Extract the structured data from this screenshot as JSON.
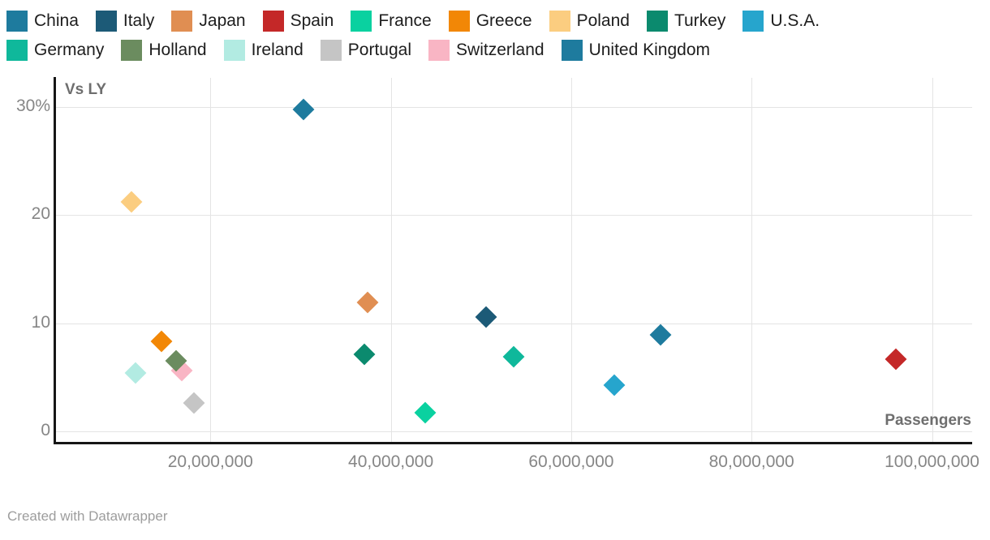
{
  "legend": {
    "rows": [
      [
        {
          "label": "China",
          "color": "#1e7b9e"
        },
        {
          "label": "Italy",
          "color": "#1c5a77"
        },
        {
          "label": "Japan",
          "color": "#e08e52"
        },
        {
          "label": "Spain",
          "color": "#c42828"
        },
        {
          "label": "France",
          "color": "#0ad1a0"
        },
        {
          "label": "Greece",
          "color": "#f28706"
        },
        {
          "label": "Poland",
          "color": "#fbcd80"
        },
        {
          "label": "Turkey",
          "color": "#0b8a6e"
        },
        {
          "label": "U.S.A.",
          "color": "#26a5cd"
        }
      ],
      [
        {
          "label": "Germany",
          "color": "#0fb89b"
        },
        {
          "label": "Holland",
          "color": "#6b8c5f"
        },
        {
          "label": "Ireland",
          "color": "#b2ebe2"
        },
        {
          "label": "Portugal",
          "color": "#c5c5c5"
        },
        {
          "label": "Switzerland",
          "color": "#f9b5c4"
        },
        {
          "label": "United Kingdom",
          "color": "#1e7b9e"
        }
      ]
    ]
  },
  "chart_data": {
    "type": "scatter",
    "title": "",
    "x_axis": {
      "label": "Passengers",
      "ticks": [
        {
          "value": 20000000,
          "label": "20,000,000"
        },
        {
          "value": 40000000,
          "label": "40,000,000"
        },
        {
          "value": 60000000,
          "label": "60,000,000"
        },
        {
          "value": 80000000,
          "label": "80,000,000"
        },
        {
          "value": 100000000,
          "label": "100,000,000"
        }
      ],
      "range": [
        2800000,
        104500000
      ],
      "grid": true
    },
    "y_axis": {
      "label": "Vs LY",
      "unit": "%",
      "ticks": [
        {
          "value": 30,
          "label": "30%"
        },
        {
          "value": 20,
          "label": "20"
        },
        {
          "value": 10,
          "label": "10"
        },
        {
          "value": 0,
          "label": "0"
        }
      ],
      "range": [
        -1.1,
        32.8
      ],
      "grid": true
    },
    "legend_position": "top",
    "marker": "diamond",
    "points": [
      {
        "country": "China",
        "passengers": 30300000,
        "vs_ly": 29.8,
        "color": "#1e7b9e"
      },
      {
        "country": "Poland",
        "passengers": 11200000,
        "vs_ly": 21.2,
        "color": "#fbcd80"
      },
      {
        "country": "Japan",
        "passengers": 37400000,
        "vs_ly": 11.9,
        "color": "#e08e52"
      },
      {
        "country": "Italy",
        "passengers": 50600000,
        "vs_ly": 10.6,
        "color": "#1c5a77"
      },
      {
        "country": "United Kingdom",
        "passengers": 69900000,
        "vs_ly": 8.9,
        "color": "#1e7b9e"
      },
      {
        "country": "Greece",
        "passengers": 14600000,
        "vs_ly": 8.3,
        "color": "#f28706"
      },
      {
        "country": "Turkey",
        "passengers": 37100000,
        "vs_ly": 7.1,
        "color": "#0b8a6e"
      },
      {
        "country": "Germany",
        "passengers": 53600000,
        "vs_ly": 6.9,
        "color": "#0fb89b"
      },
      {
        "country": "Spain",
        "passengers": 96000000,
        "vs_ly": 6.7,
        "color": "#c42828"
      },
      {
        "country": "Switzerland",
        "passengers": 16800000,
        "vs_ly": 5.6,
        "color": "#f9b5c4"
      },
      {
        "country": "Holland",
        "passengers": 16200000,
        "vs_ly": 6.5,
        "color": "#6b8c5f"
      },
      {
        "country": "Ireland",
        "passengers": 11700000,
        "vs_ly": 5.4,
        "color": "#b2ebe2"
      },
      {
        "country": "U.S.A.",
        "passengers": 64800000,
        "vs_ly": 4.3,
        "color": "#26a5cd"
      },
      {
        "country": "Portugal",
        "passengers": 18200000,
        "vs_ly": 2.6,
        "color": "#c5c5c5"
      },
      {
        "country": "France",
        "passengers": 43800000,
        "vs_ly": 1.7,
        "color": "#0ad1a0"
      }
    ]
  },
  "footer": {
    "credit": "Created with Datawrapper"
  }
}
